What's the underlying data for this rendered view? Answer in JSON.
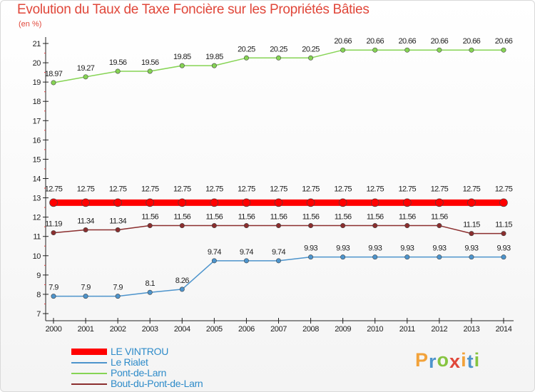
{
  "chart_data": {
    "type": "line",
    "title": "Evolution du Taux de Taxe Foncière sur les Propriétés Bâties",
    "ylabel": "(en %)",
    "xlabel": "",
    "x": [
      "2000",
      "2001",
      "2002",
      "2003",
      "2004",
      "2005",
      "2006",
      "2007",
      "2008",
      "2009",
      "2010",
      "2011",
      "2012",
      "2013",
      "2014"
    ],
    "ylim": [
      7,
      21
    ],
    "yticks": [
      7,
      8,
      9,
      10,
      11,
      12,
      13,
      14,
      15,
      16,
      17,
      18,
      19,
      20,
      21
    ],
    "grid": false,
    "legend_position": "bottom-left",
    "series": [
      {
        "name": "LE VINTROU",
        "color": "#ff0000",
        "values": [
          12.75,
          12.75,
          12.75,
          12.75,
          12.75,
          12.75,
          12.75,
          12.75,
          12.75,
          12.75,
          12.75,
          12.75,
          12.75,
          12.75,
          12.75
        ],
        "labels": [
          "12.75",
          "12.75",
          "12.75",
          "12.75",
          "12.75",
          "12.75",
          "12.75",
          "12.75",
          "12.75",
          "12.75",
          "12.75",
          "12.75",
          "12.75",
          "12.75",
          "12.75"
        ]
      },
      {
        "name": "Le Rialet",
        "color": "#4d94cc",
        "values": [
          7.9,
          7.9,
          7.9,
          8.1,
          8.26,
          9.74,
          9.74,
          9.74,
          9.93,
          9.93,
          9.93,
          9.93,
          9.93,
          9.93,
          9.93
        ],
        "labels": [
          "7.9",
          "7.9",
          "7.9",
          "8.1",
          "8.26",
          "9.74",
          "9.74",
          "9.74",
          "9.93",
          "9.93",
          "9.93",
          "9.93",
          "9.93",
          "9.93",
          "9.93"
        ]
      },
      {
        "name": "Pont-de-Larn",
        "color": "#86d454",
        "values": [
          18.97,
          19.27,
          19.56,
          19.56,
          19.85,
          19.85,
          20.25,
          20.25,
          20.25,
          20.66,
          20.66,
          20.66,
          20.66,
          20.66,
          20.66
        ],
        "labels": [
          "18.97",
          "19.27",
          "19.56",
          "19.56",
          "19.85",
          "19.85",
          "20.25",
          "20.25",
          "20.25",
          "20.66",
          "20.66",
          "20.66",
          "20.66",
          "20.66",
          "20.66"
        ]
      },
      {
        "name": "Bout-du-Pont-de-Larn",
        "color": "#8b2e2e",
        "values": [
          11.19,
          11.34,
          11.34,
          11.56,
          11.56,
          11.56,
          11.56,
          11.56,
          11.56,
          11.56,
          11.56,
          11.56,
          11.56,
          11.15,
          11.15
        ],
        "labels": [
          "11.19",
          "11.34",
          "11.34",
          "11.56",
          "11.56",
          "11.56",
          "11.56",
          "11.56",
          "11.56",
          "11.56",
          "11.56",
          "11.56",
          "11.56",
          "11.15",
          "11.15"
        ]
      }
    ]
  },
  "logo": {
    "letters": [
      "P",
      "r",
      "o",
      "x",
      "i",
      "t",
      "i"
    ],
    "colors": [
      "#f2a23a",
      "#4d94cc",
      "#86c440",
      "#e0473a",
      "#f2a23a",
      "#4d94cc",
      "#86c440"
    ]
  }
}
